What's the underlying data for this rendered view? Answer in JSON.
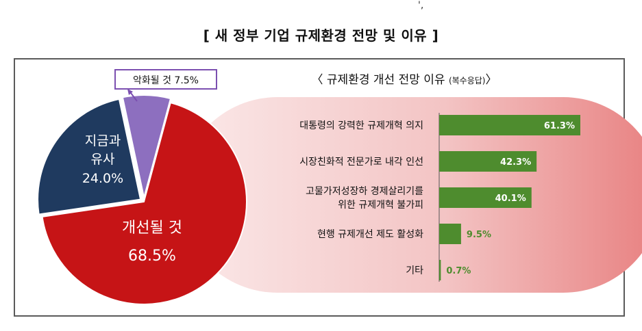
{
  "corner_mark": "',",
  "title": "[ 새 정부 기업 규제환경 전망 및 이유 ]",
  "colors": {
    "improve": "#c61416",
    "similar": "#1f3a5f",
    "worsen": "#8d6fbf",
    "bar": "#4e8c2e",
    "bar_label_inside": "#ffffff",
    "bar_label_outside": "#4e8c2e",
    "callout_border": "#7b4fb0"
  },
  "chart_data": [
    {
      "type": "pie",
      "labels": [
        "개선될 것",
        "지금과 유사",
        "악화될 것"
      ],
      "values": [
        68.5,
        24.0,
        7.5
      ],
      "slice_labels": [
        {
          "lines": [
            "개선될 것",
            "68.5%"
          ]
        },
        {
          "lines": [
            "지금과",
            "유사",
            "24.0%"
          ]
        },
        {
          "lines": [
            "악화될 것 7.5%"
          ]
        }
      ]
    },
    {
      "type": "bar",
      "title": "〈 규제환경 개선 전망 이유",
      "subtitle": "(복수응답)",
      "title_close": "〉",
      "categories": [
        [
          "대통령의 강력한 규제개혁 의지"
        ],
        [
          "시장친화적 전문가로 내각 인선"
        ],
        [
          "고물가저성장하 경제살리기를",
          "위한 규제개혁 불가피"
        ],
        [
          "현행 규제개선 제도 활성화"
        ],
        [
          "기타"
        ]
      ],
      "values": [
        61.3,
        42.3,
        40.1,
        9.5,
        0.7
      ],
      "value_labels": [
        "61.3%",
        "42.3%",
        "40.1%",
        "9.5%",
        "0.7%"
      ]
    }
  ]
}
